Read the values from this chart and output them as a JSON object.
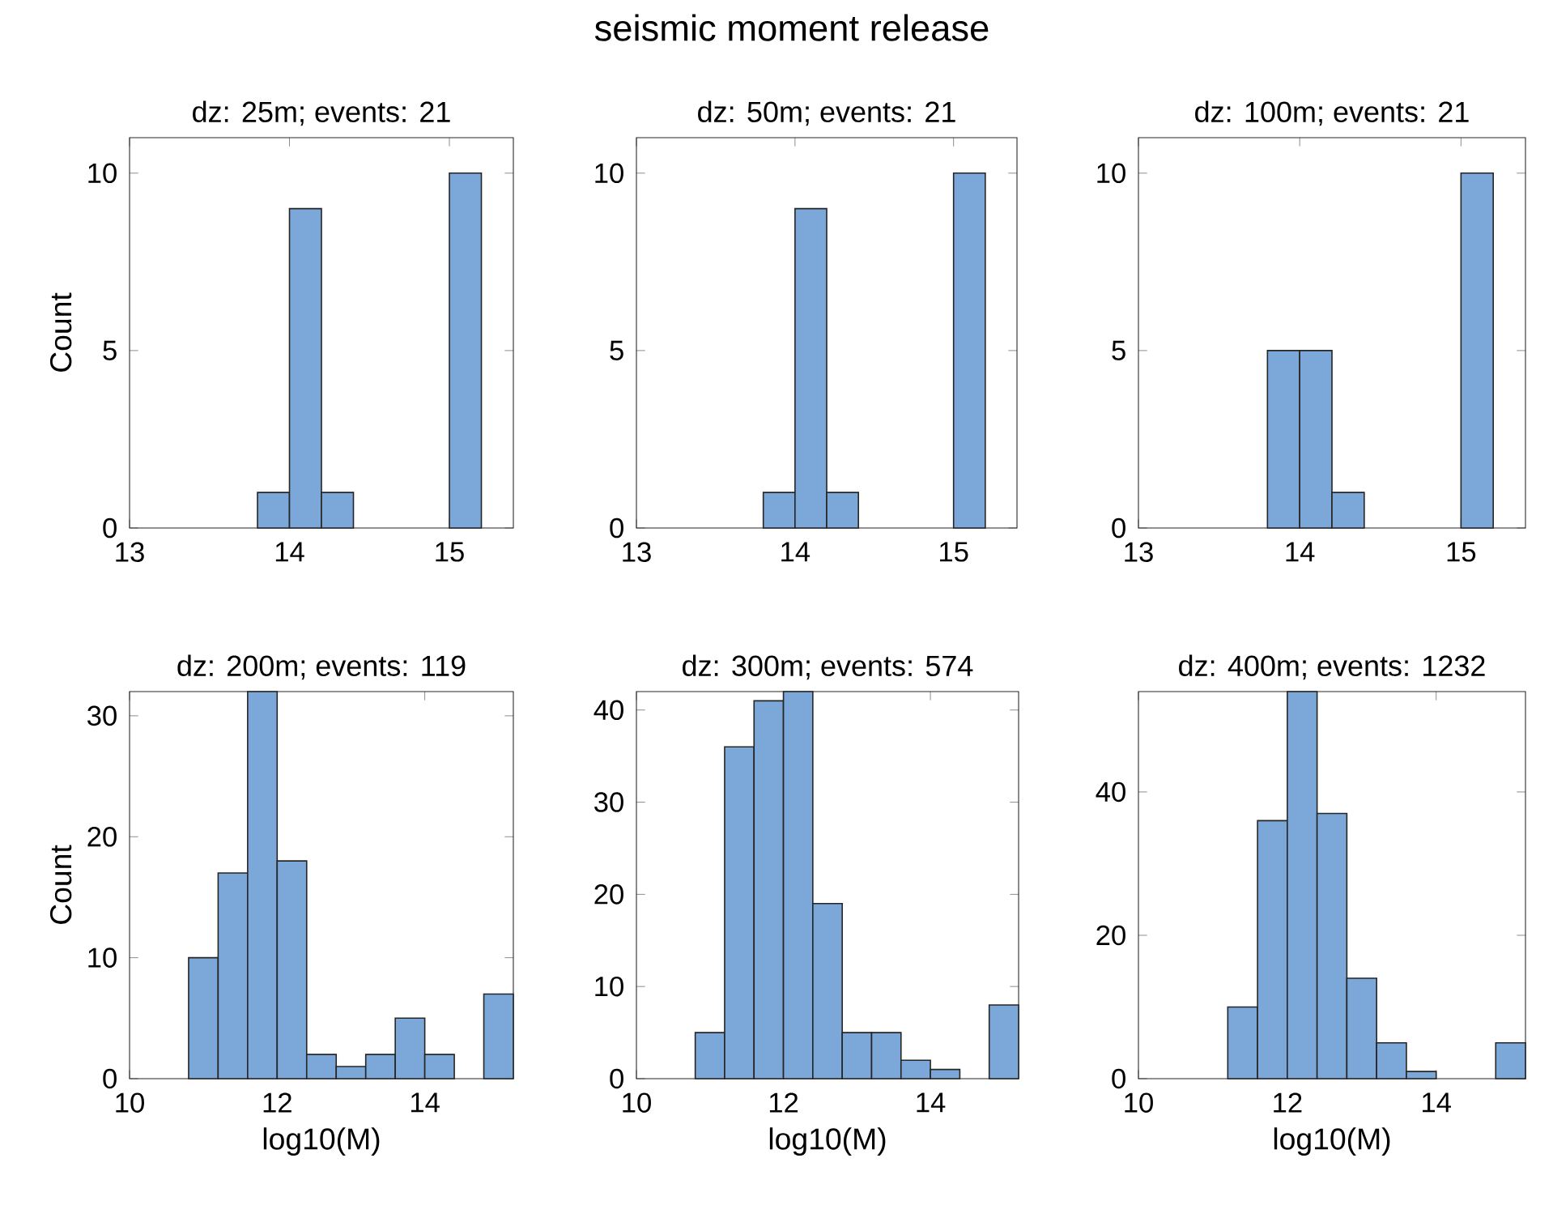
{
  "chart_data": [
    {
      "type": "histogram",
      "title": "dz: 25m; events: 21",
      "ylabel": "Count",
      "annotations": [
        "seismic moment release"
      ],
      "bins": [
        13.8,
        14.0,
        14.2,
        14.4,
        14.6,
        14.8,
        15.0,
        15.2
      ],
      "values": [
        1,
        9,
        1,
        0,
        0,
        0,
        10
      ],
      "color": "#7ba7d9",
      "xlim": [
        13,
        15.4
      ],
      "xticks": [
        13,
        14,
        15
      ],
      "ylim": [
        0,
        11
      ],
      "yticks": [
        0,
        5,
        10
      ]
    },
    {
      "type": "histogram",
      "title": "dz: 50m; events: 21",
      "bins": [
        13.8,
        14.0,
        14.2,
        14.4,
        14.6,
        14.8,
        15.0,
        15.2
      ],
      "values": [
        1,
        9,
        1,
        0,
        0,
        0,
        10
      ],
      "color": "#7ba7d9",
      "xlim": [
        13,
        15.4
      ],
      "xticks": [
        13,
        14,
        15
      ],
      "ylim": [
        0,
        11
      ],
      "yticks": [
        0,
        5,
        10
      ]
    },
    {
      "type": "histogram",
      "title": "dz: 100m; events: 21",
      "bins": [
        13.8,
        14.0,
        14.2,
        14.4,
        14.6,
        14.8,
        15.0,
        15.2
      ],
      "values": [
        5,
        5,
        1,
        0,
        0,
        0,
        10
      ],
      "color": "#7ba7d9",
      "xlim": [
        13,
        15.4
      ],
      "xticks": [
        13,
        14,
        15
      ],
      "ylim": [
        0,
        11
      ],
      "yticks": [
        0,
        5,
        10
      ]
    },
    {
      "type": "histogram",
      "title": "dz: 200m; events: 119",
      "xlabel": "log10(M)",
      "ylabel": "Count",
      "bins": [
        10.8,
        11.2,
        11.6,
        12.0,
        12.4,
        12.8,
        13.2,
        13.6,
        14.0,
        14.4,
        14.8,
        15.2
      ],
      "values": [
        10,
        17,
        32,
        18,
        2,
        1,
        2,
        5,
        2,
        0,
        7
      ],
      "color": "#7ba7d9",
      "xlim": [
        10,
        15.2
      ],
      "xticks": [
        10,
        12,
        14
      ],
      "ylim": [
        0,
        32
      ],
      "yticks": [
        0,
        10,
        20,
        30
      ]
    },
    {
      "type": "histogram",
      "title": "dz: 300m; events: 574",
      "xlabel": "log10(M)",
      "bins": [
        10.8,
        11.2,
        11.6,
        12.0,
        12.4,
        12.8,
        13.2,
        13.6,
        14.0,
        14.4,
        14.8,
        15.2
      ],
      "values": [
        5,
        36,
        41,
        42,
        19,
        5,
        5,
        2,
        1,
        0,
        8
      ],
      "color": "#7ba7d9",
      "xlim": [
        10,
        15.2
      ],
      "xticks": [
        10,
        12,
        14
      ],
      "ylim": [
        0,
        42
      ],
      "yticks": [
        0,
        10,
        20,
        30,
        40
      ]
    },
    {
      "type": "histogram",
      "title": "dz: 400m; events: 1232",
      "xlabel": "log10(M)",
      "bins": [
        11.2,
        11.6,
        12.0,
        12.4,
        12.8,
        13.2,
        13.6,
        14.0,
        14.4,
        14.8,
        15.2
      ],
      "values": [
        10,
        36,
        54,
        37,
        14,
        5,
        1,
        0,
        0,
        5
      ],
      "color": "#7ba7d9",
      "xlim": [
        10,
        15.2
      ],
      "xticks": [
        10,
        12,
        14
      ],
      "ylim": [
        0,
        54
      ],
      "yticks": [
        0,
        20,
        40
      ]
    }
  ]
}
